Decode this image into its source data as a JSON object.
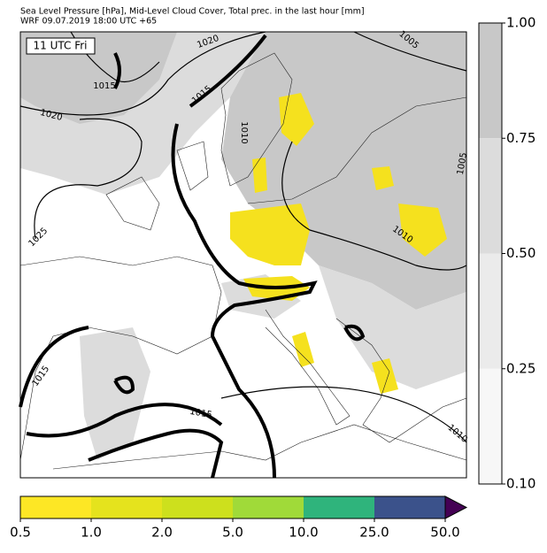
{
  "header": {
    "title_line1": "Sea Level Pressure [hPa], Mid-Level Cloud Cover, Total prec. in the last hour [mm]",
    "title_line2": "WRF 09.07.2019 18:00 UTC +65"
  },
  "map": {
    "time_label": "11 UTC Fri",
    "isobar_labels": [
      "1020",
      "1015",
      "1015",
      "1020",
      "1010",
      "1005",
      "1005",
      "1025",
      "1010",
      "1015",
      "1015",
      "1010"
    ]
  },
  "cloud_colorbar": {
    "tick_labels": [
      "1.00",
      "0.75",
      "0.50",
      "0.25",
      "0.10"
    ],
    "colors": [
      "#c8c8c8",
      "#dcdcdc",
      "#ebebeb",
      "#f7f7f7"
    ]
  },
  "precip_colorbar": {
    "tick_labels": [
      "0.5",
      "1.0",
      "2.0",
      "5.0",
      "10.0",
      "25.0",
      "50.0"
    ],
    "colors": [
      "#fde725",
      "#e5e31d",
      "#cde01d",
      "#a0da39",
      "#2fb47c",
      "#3b528b"
    ],
    "extend_color": "#440154"
  }
}
